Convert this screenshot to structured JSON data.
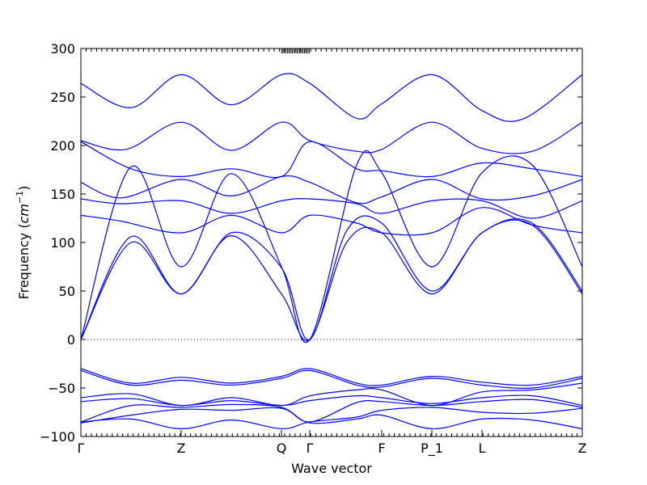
{
  "chart_data": {
    "type": "line",
    "title": "",
    "xlabel": "Wave vector",
    "ylabel": "Frequency ($cm^{-1}$)",
    "ylabel_parts": {
      "prefix": "Frequency (",
      "base": "cm",
      "exp": "−1",
      "suffix": ")"
    },
    "ylim": [
      -100,
      300
    ],
    "yticks": [
      -100,
      -50,
      0,
      50,
      100,
      150,
      200,
      250,
      300
    ],
    "ytick_labels": [
      "−100",
      "−50",
      "0",
      "50",
      "100",
      "150",
      "200",
      "250",
      "300"
    ],
    "xlim": [
      0,
      1
    ],
    "xticks": [
      {
        "label": "Γ",
        "pos": 0
      },
      {
        "label": "Z",
        "pos": 0.2
      },
      {
        "label": "Q",
        "pos": 0.4
      },
      {
        "label": "Γ",
        "pos": 0.4566
      },
      {
        "label": "F",
        "pos": 0.6
      },
      {
        "label": "P_1",
        "pos": 0.7
      },
      {
        "label": "L",
        "pos": 0.8
      },
      {
        "label": "Z",
        "pos": 1.0
      }
    ],
    "zero_line": {
      "y": 0,
      "style": "dotted"
    },
    "line_color": "#0000ff",
    "grid": false,
    "legend": "none",
    "series": [
      {
        "x": [
          0,
          0.1,
          0.2,
          0.3,
          0.4,
          0.4566,
          0.53,
          0.6,
          0.7,
          0.8,
          0.9,
          1.0
        ],
        "y": [
          0,
          100,
          47,
          107,
          47,
          0,
          100,
          110,
          47,
          110,
          118,
          47
        ]
      },
      {
        "x": [
          0,
          0.1,
          0.2,
          0.3,
          0.4,
          0.4566,
          0.53,
          0.6,
          0.7,
          0.8,
          0.9,
          1.0
        ],
        "y": [
          0,
          106,
          47,
          110,
          74,
          0,
          112,
          120,
          50,
          110,
          120,
          50
        ]
      },
      {
        "x": [
          0,
          0.1,
          0.2,
          0.3,
          0.4,
          0.4566,
          0.55,
          0.6,
          0.7,
          0.8,
          0.9,
          1.0
        ],
        "y": [
          0,
          178,
          75,
          171,
          75,
          0,
          180,
          172,
          75,
          172,
          180,
          75
        ]
      },
      {
        "x": [
          0,
          0.08,
          0.2,
          0.3,
          0.4,
          0.4566,
          0.55,
          0.6,
          0.7,
          0.8,
          0.9,
          1.0
        ],
        "y": [
          128,
          122,
          110,
          128,
          110,
          128,
          120,
          110,
          110,
          136,
          118,
          110
        ]
      },
      {
        "x": [
          0,
          0.08,
          0.2,
          0.3,
          0.4,
          0.4566,
          0.55,
          0.6,
          0.7,
          0.8,
          0.9,
          1.0
        ],
        "y": [
          145,
          140,
          143,
          130,
          143,
          145,
          140,
          130,
          143,
          143,
          125,
          143
        ]
      },
      {
        "x": [
          0,
          0.08,
          0.2,
          0.3,
          0.4,
          0.4566,
          0.55,
          0.6,
          0.7,
          0.8,
          0.9,
          1.0
        ],
        "y": [
          162,
          146,
          165,
          148,
          168,
          162,
          141,
          147,
          165,
          145,
          148,
          165
        ]
      },
      {
        "x": [
          0,
          0.1,
          0.2,
          0.3,
          0.4,
          0.4566,
          0.55,
          0.6,
          0.7,
          0.8,
          0.9,
          1.0
        ],
        "y": [
          204,
          176,
          168,
          176,
          168,
          204,
          176,
          174,
          168,
          182,
          176,
          168
        ]
      },
      {
        "x": [
          0,
          0.09,
          0.2,
          0.3,
          0.4,
          0.4566,
          0.55,
          0.6,
          0.7,
          0.8,
          0.9,
          1.0
        ],
        "y": [
          205,
          196,
          224,
          195,
          224,
          205,
          194,
          196,
          224,
          197,
          194,
          224
        ]
      },
      {
        "x": [
          0,
          0.1,
          0.2,
          0.3,
          0.4,
          0.4566,
          0.55,
          0.6,
          0.7,
          0.8,
          0.88,
          1.0
        ],
        "y": [
          264,
          239,
          273,
          242,
          273,
          264,
          228,
          243,
          273,
          236,
          227,
          273
        ]
      },
      {
        "x": [
          0,
          0.1,
          0.2,
          0.3,
          0.4,
          0.4566,
          0.55,
          0.6,
          0.7,
          0.8,
          0.9,
          1.0
        ],
        "y": [
          -30,
          -45,
          -39,
          -45,
          -38,
          -30,
          -45,
          -47,
          -38,
          -44,
          -47,
          -38
        ]
      },
      {
        "x": [
          0,
          0.1,
          0.2,
          0.3,
          0.4,
          0.4566,
          0.55,
          0.6,
          0.7,
          0.8,
          0.9,
          1.0
        ],
        "y": [
          -32,
          -47,
          -42,
          -47,
          -40,
          -32,
          -47,
          -49,
          -40,
          -47,
          -50,
          -40
        ]
      },
      {
        "x": [
          0,
          0.1,
          0.2,
          0.3,
          0.4,
          0.4566,
          0.55,
          0.6,
          0.7,
          0.8,
          0.9,
          1.0
        ],
        "y": [
          -60,
          -56,
          -68,
          -60,
          -68,
          -58,
          -52,
          -52,
          -68,
          -54,
          -52,
          -45
        ]
      },
      {
        "x": [
          0,
          0.1,
          0.2,
          0.3,
          0.4,
          0.4566,
          0.55,
          0.6,
          0.7,
          0.8,
          0.9,
          1.0
        ],
        "y": [
          -64,
          -61,
          -68,
          -63,
          -68,
          -63,
          -58,
          -60,
          -66,
          -60,
          -58,
          -68
        ]
      },
      {
        "x": [
          0,
          0.1,
          0.2,
          0.3,
          0.4,
          0.4566,
          0.55,
          0.6,
          0.7,
          0.8,
          0.9,
          1.0
        ],
        "y": [
          -85,
          -68,
          -70,
          -67,
          -70,
          -85,
          -65,
          -64,
          -68,
          -64,
          -62,
          -70
        ]
      },
      {
        "x": [
          0,
          0.1,
          0.2,
          0.3,
          0.4,
          0.4566,
          0.55,
          0.6,
          0.7,
          0.8,
          0.9,
          1.0
        ],
        "y": [
          -85,
          -82,
          -92,
          -83,
          -92,
          -85,
          -80,
          -73,
          -70,
          -75,
          -76,
          -71
        ]
      },
      {
        "x": [
          0,
          0.1,
          0.2,
          0.3,
          0.4,
          0.4566,
          0.55,
          0.6,
          0.7,
          0.8,
          0.9,
          1.0
        ],
        "y": [
          -86,
          -78,
          -72,
          -73,
          -71,
          -86,
          -82,
          -78,
          -92,
          -82,
          -83,
          -92
        ]
      }
    ]
  }
}
